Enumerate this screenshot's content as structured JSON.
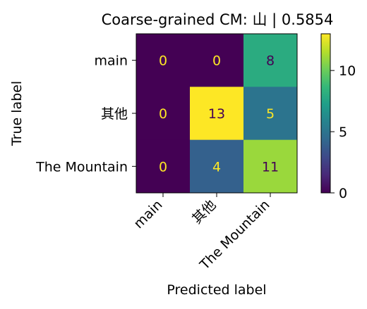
{
  "chart_data": {
    "type": "heatmap",
    "title": "Coarse-grained CM: 山 | 0.5854",
    "xlabel": "Predicted label",
    "ylabel": "True label",
    "x_categories": [
      "main",
      "其他",
      "The Mountain"
    ],
    "y_categories": [
      "main",
      "其他",
      "The Mountain"
    ],
    "matrix": [
      [
        0,
        0,
        8
      ],
      [
        0,
        13,
        5
      ],
      [
        0,
        4,
        11
      ]
    ],
    "colorbar": {
      "min": 0,
      "max": 13,
      "ticks": [
        0,
        5,
        10
      ],
      "colormap": "viridis"
    }
  }
}
